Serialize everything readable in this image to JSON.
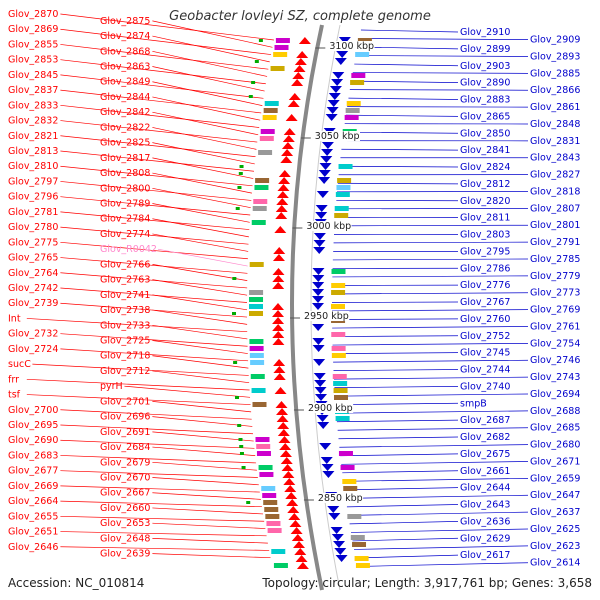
{
  "title": "Geobacter lovleyi SZ, complete genome",
  "footer": {
    "accession": "Accession: NC_010814",
    "summary": "Topology: circular; Length: 3,917,761 bp; Genes: 3,658"
  },
  "colors": {
    "forward": "#ff0000",
    "reverse": "#0000cc",
    "rna": "#ff88cc",
    "backbone": "#888888"
  },
  "bp_ticks": [
    "3100 kbp",
    "3050 kbp",
    "3000 kbp",
    "2950 kbp",
    "2900 kbp",
    "2850 kbp"
  ],
  "left_labels": [
    "Glov_2870",
    "Glov_2875",
    "Glov_2869",
    "Glov_2874",
    "Glov_2855",
    "Glov_2868",
    "Glov_2853",
    "Glov_2863",
    "Glov_2845",
    "Glov_2849",
    "Glov_2837",
    "Glov_2844",
    "Glov_2833",
    "Glov_2842",
    "Glov_2832",
    "Glov_2822",
    "Glov_2821",
    "Glov_2825",
    "Glov_2813",
    "Glov_2817",
    "Glov_2810",
    "Glov_2808",
    "Glov_2797",
    "Glov_2800",
    "Glov_2796",
    "Glov_2789",
    "Glov_2781",
    "Glov_2784",
    "Glov_2780",
    "Glov_2774",
    "Glov_2775",
    "Glov_R0042",
    "Glov_2765",
    "Glov_2766",
    "Glov_2764",
    "Glov_2763",
    "Glov_2742",
    "Glov_2741",
    "Glov_2739",
    "Glov_2738",
    "Int",
    "Glov_2733",
    "Glov_2732",
    "Glov_2725",
    "Glov_2724",
    "Glov_2718",
    "sucC",
    "Glov_2712",
    "frr",
    "pyrH",
    "tsf",
    "Glov_2701",
    "Glov_2700",
    "Glov_2696",
    "Glov_2695",
    "Glov_2691",
    "Glov_2690",
    "Glov_2684",
    "Glov_2683",
    "Glov_2679",
    "Glov_2677",
    "Glov_2670",
    "Glov_2669",
    "Glov_2667",
    "Glov_2664",
    "Glov_2660",
    "Glov_2655",
    "Glov_2653",
    "Glov_2651",
    "Glov_2648",
    "Glov_2646",
    "Glov_2639"
  ],
  "right_labels": [
    "Glov_2910",
    "Glov_2909",
    "Glov_2899",
    "Glov_2893",
    "Glov_2903",
    "Glov_2885",
    "Glov_2890",
    "Glov_2866",
    "Glov_2883",
    "Glov_2861",
    "Glov_2865",
    "Glov_2848",
    "Glov_2850",
    "Glov_2831",
    "Glov_2841",
    "Glov_2843",
    "Glov_2824",
    "Glov_2827",
    "Glov_2812",
    "Glov_2818",
    "Glov_2820",
    "Glov_2807",
    "Glov_2811",
    "Glov_2801",
    "Glov_2803",
    "Glov_2791",
    "Glov_2795",
    "Glov_2785",
    "Glov_2786",
    "Glov_2779",
    "Glov_2776",
    "Glov_2773",
    "Glov_2767",
    "Glov_2769",
    "Glov_2760",
    "Glov_2761",
    "Glov_2752",
    "Glov_2754",
    "Glov_2745",
    "Glov_2746",
    "Glov_2744",
    "Glov_2743",
    "Glov_2740",
    "Glov_2694",
    "smpB",
    "Glov_2688",
    "Glov_2687",
    "Glov_2685",
    "Glov_2682",
    "Glov_2680",
    "Glov_2675",
    "Glov_2671",
    "Glov_2661",
    "Glov_2659",
    "Glov_2644",
    "Glov_2647",
    "Glov_2643",
    "Glov_2637",
    "Glov_2636",
    "Glov_2625",
    "Glov_2629",
    "Glov_2623",
    "Glov_2617",
    "Glov_2614"
  ]
}
